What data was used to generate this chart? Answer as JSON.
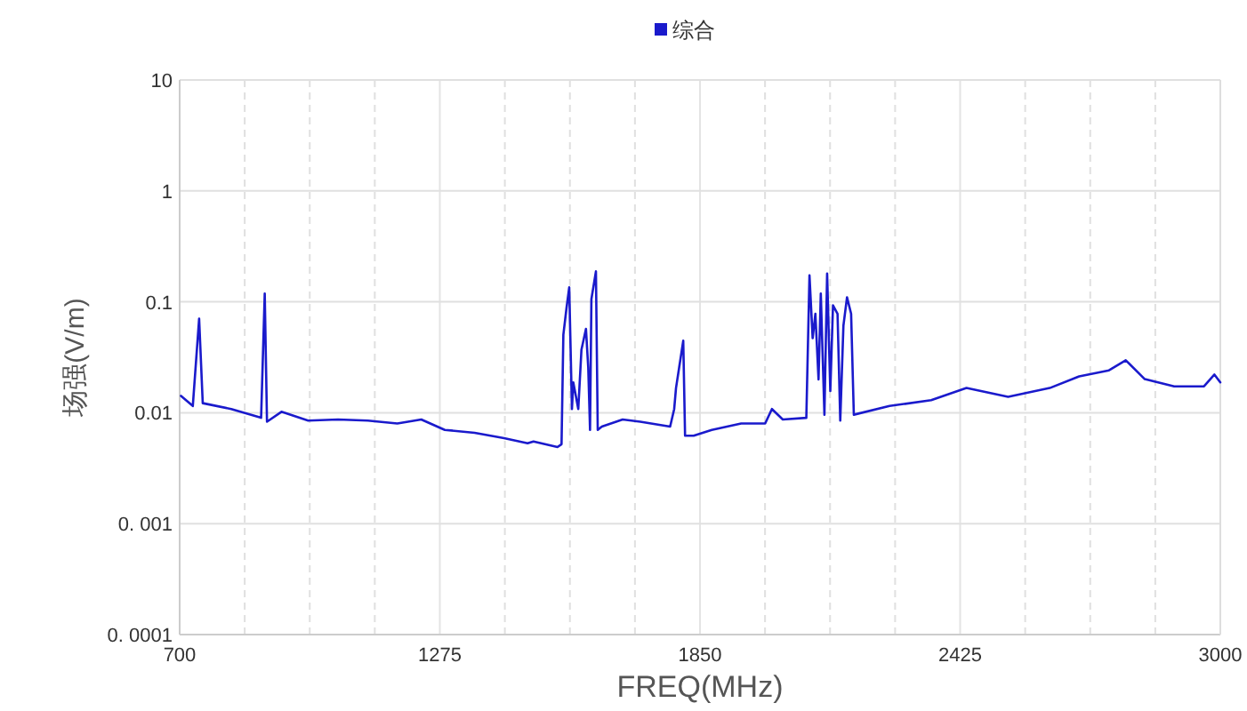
{
  "chart_data": {
    "type": "line",
    "xlabel": "FREQ(MHz)",
    "ylabel": "场强(V/m)",
    "legend": "top",
    "grid": true,
    "log": "y",
    "xlim": [
      700,
      3000
    ],
    "ylim": [
      0.0001,
      10
    ],
    "xticks": [
      700,
      {
        "value": 843.75,
        "label": null
      },
      {
        "value": 987.5,
        "label": null
      },
      {
        "value": 1131.25,
        "label": null
      },
      1275,
      {
        "value": 1418.75,
        "label": null
      },
      {
        "value": 1562.5,
        "label": null
      },
      {
        "value": 1706.25,
        "label": null
      },
      1850,
      {
        "value": 1993.75,
        "label": null
      },
      {
        "value": 2137.5,
        "label": null
      },
      {
        "value": 2281.25,
        "label": null
      },
      2425,
      {
        "value": 2568.75,
        "label": null
      },
      {
        "value": 2712.5,
        "label": null
      },
      {
        "value": 2856.25,
        "label": null
      },
      3000
    ],
    "yticks": [
      {
        "value": 0.0001,
        "label": "0. 0001"
      },
      {
        "value": 0.001,
        "label": "0. 001"
      },
      0.01,
      0.1,
      1,
      10
    ],
    "x": [
      703,
      729,
      743,
      751,
      814,
      880,
      888,
      893,
      925,
      984,
      1050,
      1116,
      1181,
      1234,
      1286,
      1352,
      1417,
      1469,
      1482,
      1535,
      1544,
      1548,
      1555,
      1561,
      1567,
      1570,
      1581,
      1588,
      1598,
      1603,
      1607,
      1610,
      1620,
      1624,
      1633,
      1679,
      1718,
      1784,
      1793,
      1797,
      1813,
      1817,
      1836,
      1876,
      1941,
      1994,
      2009,
      2033,
      2085,
      2092,
      2099,
      2105,
      2112,
      2117,
      2125,
      2131,
      2138,
      2144,
      2154,
      2160,
      2167,
      2175,
      2184,
      2190,
      2269,
      2361,
      2439,
      2531,
      2623,
      2688,
      2754,
      2791,
      2833,
      2898,
      2964,
      2987,
      3000
    ],
    "series": [
      {
        "name": "综合",
        "color": "#1a1acc",
        "values": [
          0.0142,
          0.0115,
          0.0705,
          0.0122,
          0.0108,
          0.009,
          0.119,
          0.0083,
          0.0102,
          0.0085,
          0.0087,
          0.0085,
          0.008,
          0.0087,
          0.007,
          0.0066,
          0.0059,
          0.0053,
          0.0055,
          0.0049,
          0.0052,
          0.0505,
          0.088,
          0.135,
          0.0108,
          0.0188,
          0.0108,
          0.037,
          0.057,
          0.0256,
          0.007,
          0.106,
          0.188,
          0.007,
          0.0075,
          0.0087,
          0.0083,
          0.0075,
          0.0108,
          0.0167,
          0.0446,
          0.0062,
          0.0062,
          0.007,
          0.008,
          0.008,
          0.0108,
          0.0087,
          0.009,
          0.173,
          0.047,
          0.078,
          0.02,
          0.119,
          0.0096,
          0.18,
          0.0157,
          0.093,
          0.078,
          0.0085,
          0.061,
          0.11,
          0.078,
          0.0096,
          0.0115,
          0.013,
          0.0167,
          0.0139,
          0.0167,
          0.0213,
          0.0241,
          0.0297,
          0.0201,
          0.0173,
          0.0173,
          0.0221,
          0.0188
        ]
      }
    ]
  }
}
